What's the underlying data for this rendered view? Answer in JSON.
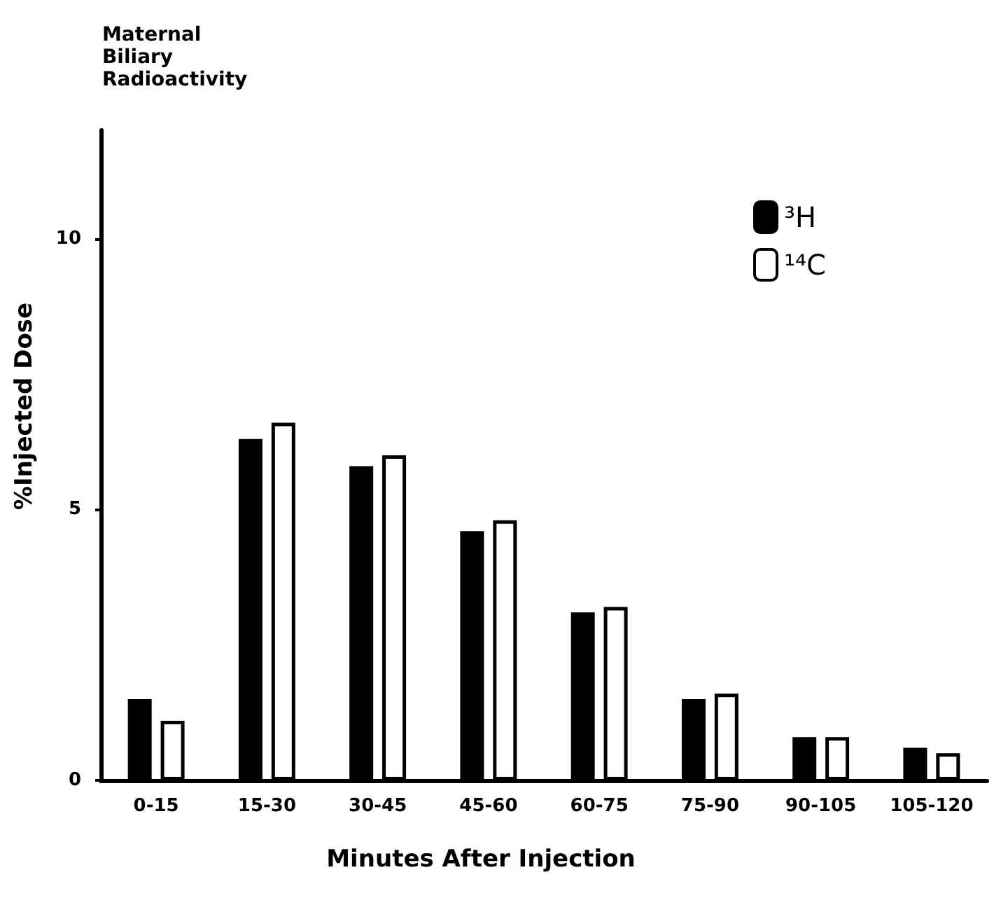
{
  "chart_data": {
    "type": "bar",
    "title": "Maternal Biliary Radioactivity",
    "xlabel": "Minutes After Injection",
    "ylabel": "%Injected Dose",
    "categories": [
      "0-15",
      "15-30",
      "30-45",
      "45-60",
      "60-75",
      "75-90",
      "90-105",
      "105-120"
    ],
    "series": [
      {
        "name": "³H",
        "color": "#000000",
        "values": [
          1.5,
          6.3,
          5.8,
          4.6,
          3.1,
          1.5,
          0.8,
          0.6
        ]
      },
      {
        "name": "¹⁴C",
        "color": "#ffffff",
        "values": [
          1.1,
          6.6,
          6.0,
          4.8,
          3.2,
          1.6,
          0.8,
          0.5
        ]
      }
    ],
    "ylim": [
      0,
      12
    ],
    "yticks": [
      0,
      5,
      10
    ],
    "grid": false,
    "legend": "top right"
  }
}
